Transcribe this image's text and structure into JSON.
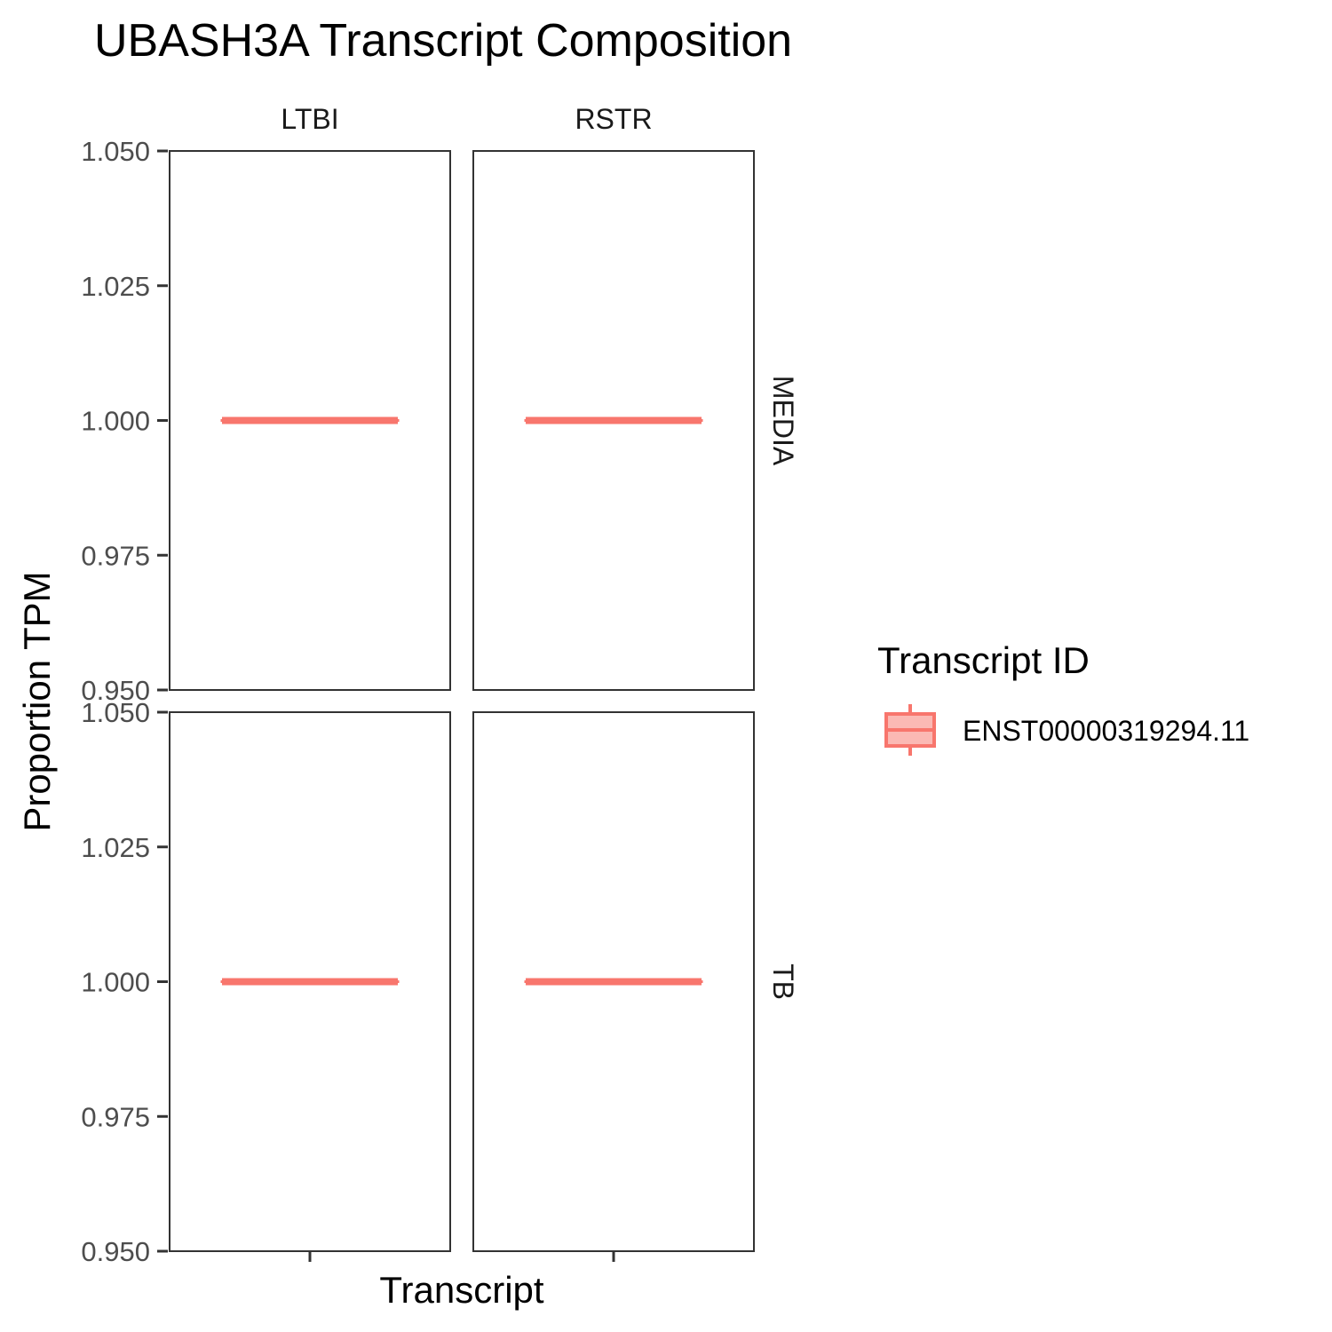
{
  "chart_data": {
    "type": "boxplot",
    "title": "UBASH3A Transcript Composition",
    "xlabel": "Transcript",
    "ylabel": "Proportion TPM",
    "ylim": [
      0.95,
      1.05
    ],
    "yticks": [
      "0.950",
      "0.975",
      "1.000",
      "1.025",
      "1.050"
    ],
    "yticks_values": [
      0.95,
      0.975,
      1.0,
      1.025,
      1.05
    ],
    "facet_cols": [
      "LTBI",
      "RSTR"
    ],
    "facet_rows": [
      "MEDIA",
      "TB"
    ],
    "grid": false,
    "legend": {
      "title": "Transcript ID",
      "placement": "right",
      "entries": [
        {
          "name": "ENST00000319294.11",
          "color": "#F8766D"
        }
      ]
    },
    "panels": [
      {
        "row": "MEDIA",
        "col": "LTBI",
        "series": "ENST00000319294.11",
        "min": 1.0,
        "q1": 1.0,
        "median": 1.0,
        "q3": 1.0,
        "max": 1.0
      },
      {
        "row": "MEDIA",
        "col": "RSTR",
        "series": "ENST00000319294.11",
        "min": 1.0,
        "q1": 1.0,
        "median": 1.0,
        "q3": 1.0,
        "max": 1.0
      },
      {
        "row": "TB",
        "col": "LTBI",
        "series": "ENST00000319294.11",
        "min": 1.0,
        "q1": 1.0,
        "median": 1.0,
        "q3": 1.0,
        "max": 1.0
      },
      {
        "row": "TB",
        "col": "RSTR",
        "series": "ENST00000319294.11",
        "min": 1.0,
        "q1": 1.0,
        "median": 1.0,
        "q3": 1.0,
        "max": 1.0
      }
    ],
    "colors": {
      "series": "#F8766D",
      "legend_fill": "#FBB9B4"
    }
  }
}
